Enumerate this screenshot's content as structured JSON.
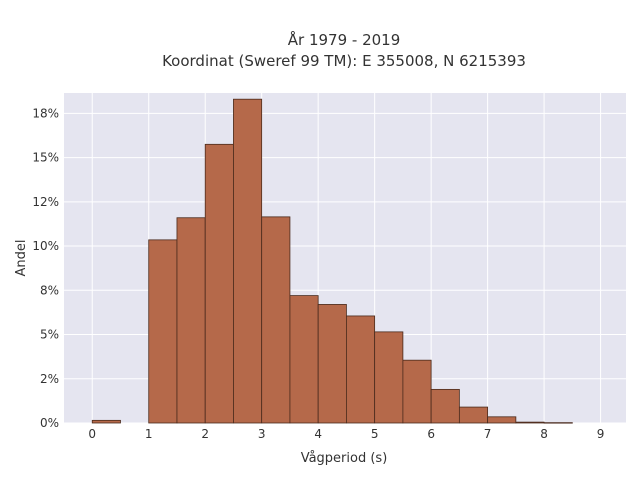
{
  "chart_data": {
    "type": "bar",
    "title": "År 1979 - 2019",
    "subtitle": "Koordinat (Sweref 99 TM): E 355008, N 6215393",
    "xlabel": "Vågperiod (s)",
    "ylabel": "Andel",
    "xlim": [
      -0.5,
      9.45
    ],
    "ylim": [
      0,
      0.1865
    ],
    "x_ticks": [
      0,
      1,
      2,
      3,
      4,
      5,
      6,
      7,
      8,
      9
    ],
    "y_ticks": [
      0,
      0.025,
      0.05,
      0.075,
      0.1,
      0.125,
      0.15,
      0.175
    ],
    "y_tick_labels": [
      "0%",
      "2%",
      "5%",
      "8%",
      "10%",
      "12%",
      "15%",
      "18%"
    ],
    "bin_width": 0.5,
    "bins": [
      {
        "start": 0.0,
        "value": 0.0015
      },
      {
        "start": 0.5,
        "value": 0.0
      },
      {
        "start": 1.0,
        "value": 0.1035
      },
      {
        "start": 1.5,
        "value": 0.116
      },
      {
        "start": 2.0,
        "value": 0.1575
      },
      {
        "start": 2.5,
        "value": 0.183
      },
      {
        "start": 3.0,
        "value": 0.1165
      },
      {
        "start": 3.5,
        "value": 0.072
      },
      {
        "start": 4.0,
        "value": 0.067
      },
      {
        "start": 4.5,
        "value": 0.0605
      },
      {
        "start": 5.0,
        "value": 0.0515
      },
      {
        "start": 5.5,
        "value": 0.0355
      },
      {
        "start": 6.0,
        "value": 0.019
      },
      {
        "start": 6.5,
        "value": 0.009
      },
      {
        "start": 7.0,
        "value": 0.0035
      },
      {
        "start": 7.5,
        "value": 0.0005
      },
      {
        "start": 8.0,
        "value": 0.0002
      }
    ],
    "grid": true,
    "colors": {
      "bar": "#b5694a",
      "bar_edge": "#4a2a1c",
      "plot_bg": "#e5e5f0",
      "grid": "#ffffff"
    }
  }
}
